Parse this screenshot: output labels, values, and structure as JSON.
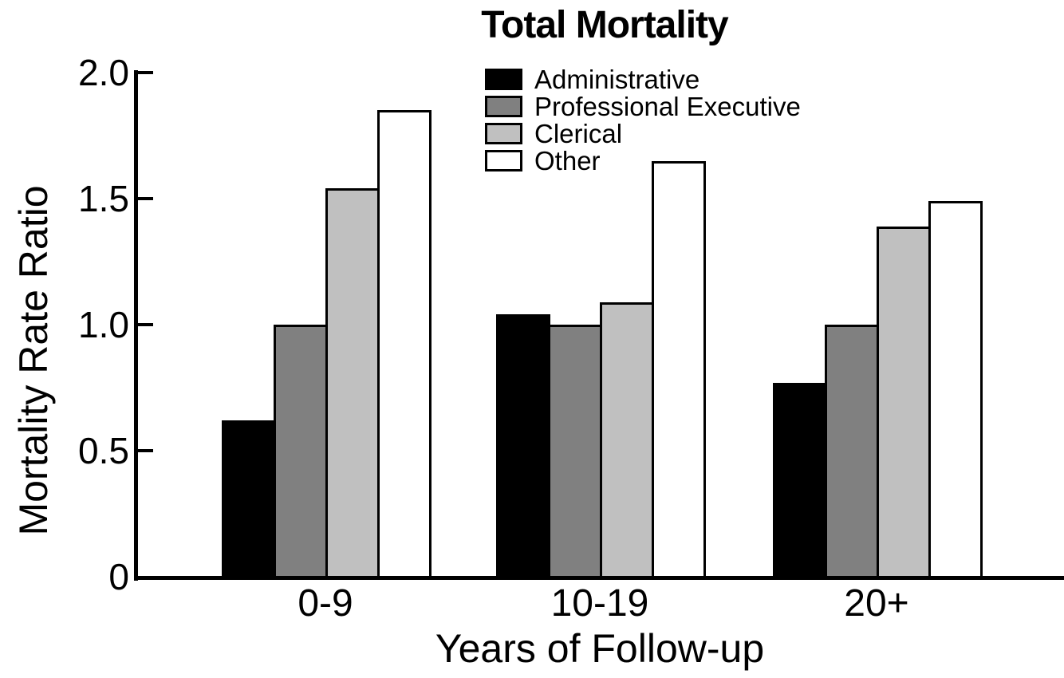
{
  "chart_data": {
    "type": "bar",
    "title": "Total Mortality",
    "xlabel": "Years of Follow-up",
    "ylabel": "Mortality Rate Ratio",
    "categories": [
      "0-9",
      "10-19",
      "20+"
    ],
    "series": [
      {
        "name": "Administrative",
        "color": "#000000",
        "values": [
          0.62,
          1.04,
          0.77
        ]
      },
      {
        "name": "Professional Executive",
        "color": "#808080",
        "values": [
          1.0,
          1.0,
          1.0
        ]
      },
      {
        "name": "Clerical",
        "color": "#c0c0c0",
        "values": [
          1.54,
          1.09,
          1.39
        ]
      },
      {
        "name": "Other",
        "color": "#ffffff",
        "values": [
          1.85,
          1.65,
          1.49
        ]
      }
    ],
    "ylim": [
      0,
      2.0
    ],
    "yticks": [
      0,
      0.5,
      1.0,
      1.5,
      2.0
    ],
    "ytick_labels": [
      "0",
      "0.5",
      "1.0",
      "1.5",
      "2.0"
    ],
    "grid": false,
    "legend_position": "top-center-inside",
    "bar_outline_color": "#000000",
    "axis_color": "#000000"
  }
}
